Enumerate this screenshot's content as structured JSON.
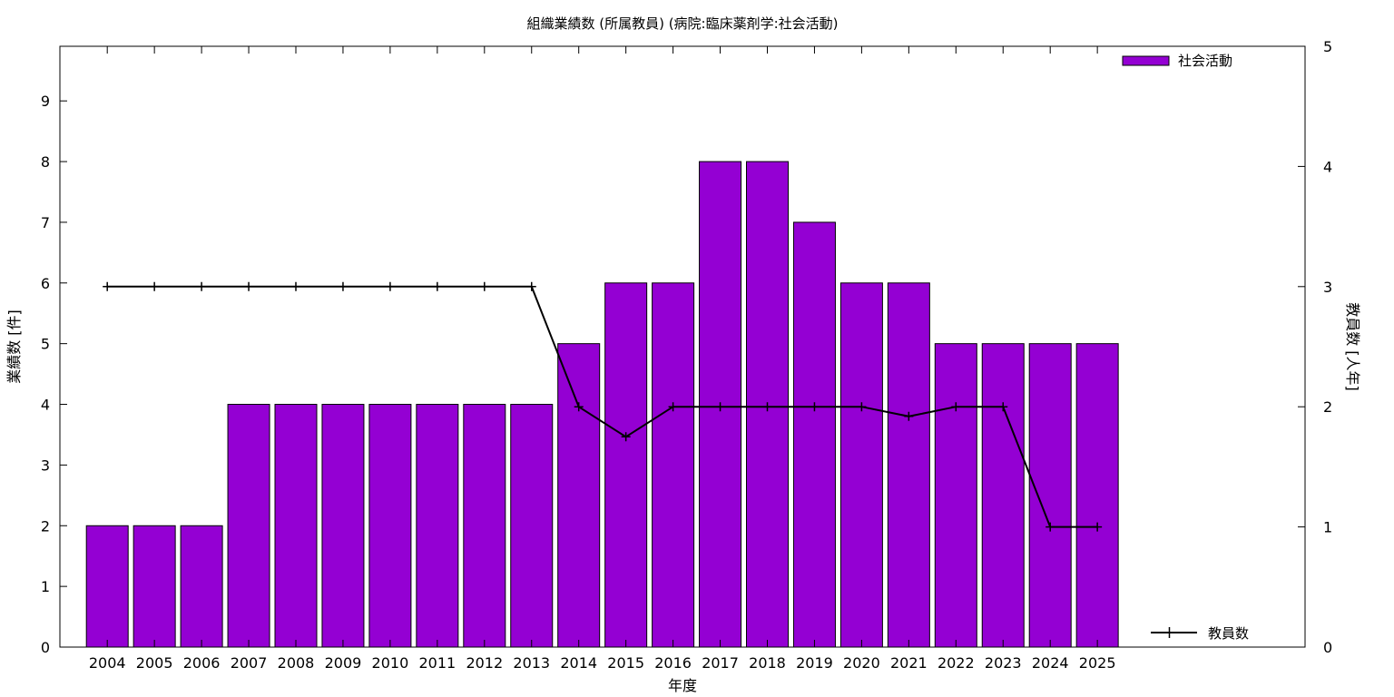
{
  "chart_data": {
    "type": "bar",
    "title": "組織業績数 (所属教員) (病院:臨床薬剤学:社会活動)",
    "xlabel": "年度",
    "ylabel": "業績数 [件]",
    "y2label": "教員数 [人年]",
    "categories": [
      "2004",
      "2005",
      "2006",
      "2007",
      "2008",
      "2009",
      "2010",
      "2011",
      "2012",
      "2013",
      "2014",
      "2015",
      "2016",
      "2017",
      "2018",
      "2019",
      "2020",
      "2021",
      "2022",
      "2023",
      "2024",
      "2025"
    ],
    "ylim": [
      0,
      9.9
    ],
    "y2lim": [
      0,
      5
    ],
    "yticks": [
      0,
      1,
      2,
      3,
      4,
      5,
      6,
      7,
      8,
      9
    ],
    "y2ticks": [
      0,
      1,
      2,
      3,
      4,
      5
    ],
    "grid": false,
    "series": [
      {
        "name": "社会活動",
        "type": "bar",
        "axis": "left",
        "color": "#9400d3",
        "values": [
          2,
          2,
          2,
          4,
          4,
          4,
          4,
          4,
          4,
          4,
          5,
          6,
          6,
          8,
          8,
          7,
          6,
          6,
          5,
          5,
          5,
          5
        ]
      },
      {
        "name": "教員数",
        "type": "line",
        "axis": "right",
        "color": "#000000",
        "values": [
          3,
          3,
          3,
          3,
          3,
          3,
          3,
          3,
          3,
          3,
          2,
          1.75,
          2,
          2,
          2,
          2,
          2,
          1.92,
          2,
          2,
          1,
          1
        ]
      }
    ],
    "legend": [
      "top-right",
      "bottom-right"
    ]
  }
}
